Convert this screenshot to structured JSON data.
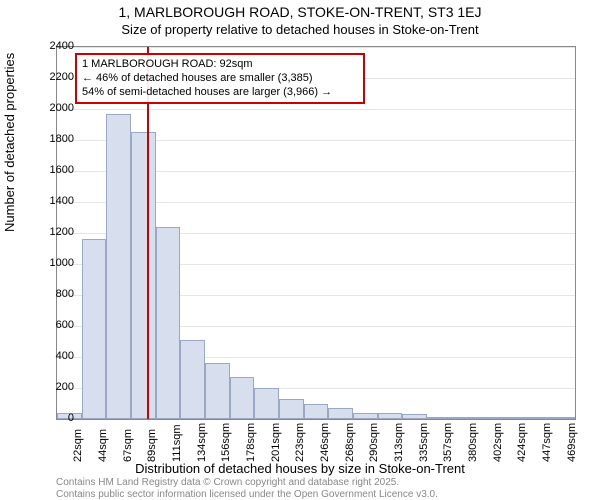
{
  "title_main": "1, MARLBOROUGH ROAD, STOKE-ON-TRENT, ST3 1EJ",
  "title_sub": "Size of property relative to detached houses in Stoke-on-Trent",
  "y_axis_title": "Number of detached properties",
  "x_axis_title": "Distribution of detached houses by size in Stoke-on-Trent",
  "footer1": "Contains HM Land Registry data © Crown copyright and database right 2025.",
  "footer2": "Contains public sector information licensed under the Open Government Licence v3.0.",
  "histogram": {
    "type": "bar",
    "ylim": [
      0,
      2400
    ],
    "ytick_step": 200,
    "background_color": "#ffffff",
    "grid_color": "#e5e5e5",
    "border_color": "#888888",
    "bar_fill": "#d7deee",
    "bar_stroke": "#9aa8c6",
    "categories": [
      "22sqm",
      "44sqm",
      "67sqm",
      "89sqm",
      "111sqm",
      "134sqm",
      "156sqm",
      "178sqm",
      "201sqm",
      "223sqm",
      "246sqm",
      "268sqm",
      "290sqm",
      "313sqm",
      "335sqm",
      "357sqm",
      "380sqm",
      "402sqm",
      "424sqm",
      "447sqm",
      "469sqm"
    ],
    "values": [
      40,
      1160,
      1970,
      1850,
      1240,
      510,
      360,
      270,
      200,
      130,
      100,
      70,
      40,
      40,
      30,
      15,
      10,
      10,
      8,
      6,
      5
    ]
  },
  "marker": {
    "color": "#cc0000",
    "value_sqm": 92
  },
  "annotation": {
    "border_color": "#cc0000",
    "line1": "1 MARLBOROUGH ROAD: 92sqm",
    "line2": "← 46% of detached houses are smaller (3,385)",
    "line3": "54% of semi-detached houses are larger (3,966) →"
  },
  "title_fontsize": 14,
  "axis_label_fontsize": 13,
  "tick_fontsize": 11
}
